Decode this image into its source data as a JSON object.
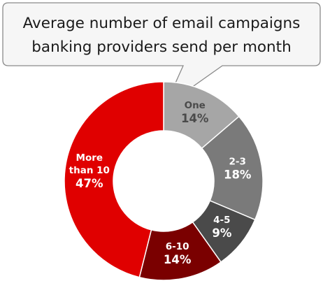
{
  "chart_data": {
    "type": "pie",
    "title_lines": [
      "Average number of email campaigns",
      "banking providers send per month"
    ],
    "categories": [
      "One",
      "2-3",
      "4-5",
      "6-10",
      "More than 10"
    ],
    "labels": [
      [
        "One"
      ],
      [
        "2-3"
      ],
      [
        "4-5"
      ],
      [
        "6-10"
      ],
      [
        "More",
        "than 10"
      ]
    ],
    "values": [
      14,
      18,
      9,
      14,
      47
    ],
    "value_labels": [
      "14%",
      "18%",
      "9%",
      "14%",
      "47%"
    ],
    "unit": "%",
    "donut": true,
    "colors": [
      "#a6a6a6",
      "#7a7a7a",
      "#4a4a4a",
      "#7a0000",
      "#e00000"
    ],
    "label_colors": [
      "#4a4a4a",
      "#ffffff",
      "#ffffff",
      "#ffffff",
      "#ffffff"
    ]
  }
}
